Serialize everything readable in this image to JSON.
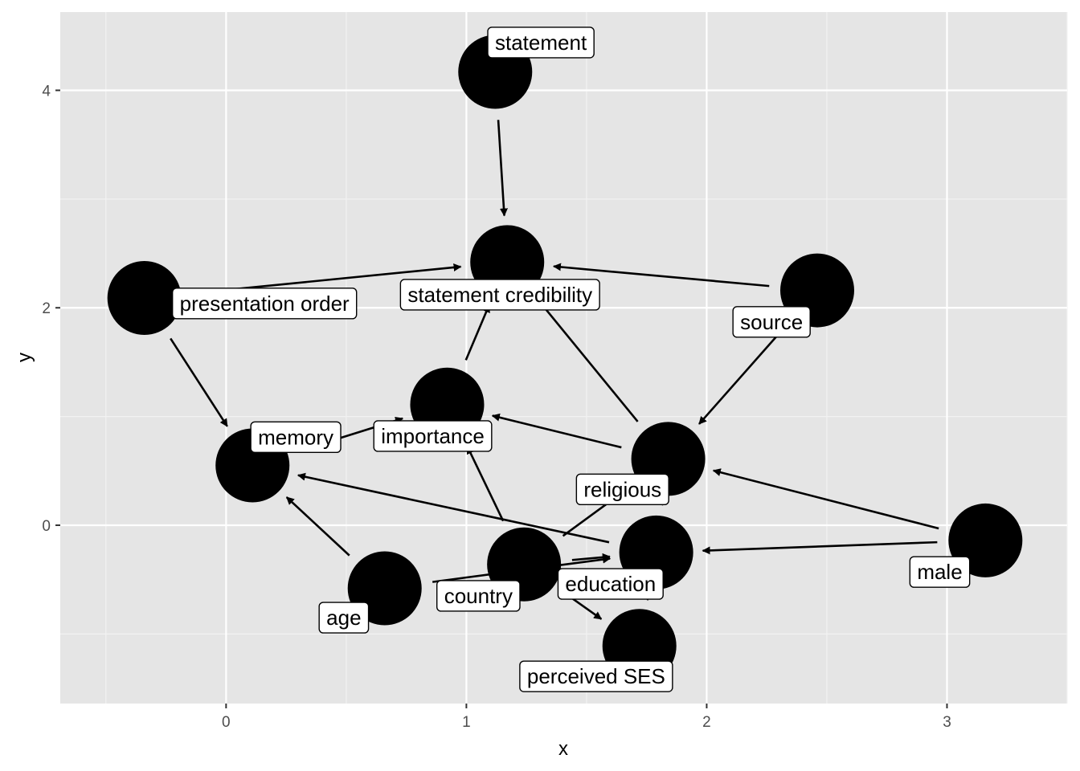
{
  "chart_data": {
    "type": "scatter",
    "subtype": "directed-acyclic-graph",
    "xlabel": "x",
    "ylabel": "y",
    "xlim": [
      -0.69,
      3.5
    ],
    "ylim": [
      -1.64,
      4.72
    ],
    "x_ticks": [
      0,
      1,
      2,
      3
    ],
    "y_ticks": [
      0,
      2,
      4
    ],
    "x_tick_labels": [
      "0",
      "1",
      "2",
      "3"
    ],
    "y_tick_labels": [
      "0",
      "2",
      "4"
    ],
    "grid": true,
    "background": "#e5e5e5",
    "node_color": "#000000",
    "nodes": [
      {
        "id": "statement",
        "label": "statement",
        "x": 1.12,
        "y": 4.17,
        "label_x": 1.31,
        "label_y": 4.44
      },
      {
        "id": "statement_credibility",
        "label": "statement credibility",
        "x": 1.17,
        "y": 2.42,
        "label_x": 1.14,
        "label_y": 2.12
      },
      {
        "id": "presentation_order",
        "label": "presentation order",
        "x": -0.34,
        "y": 2.09,
        "label_x": 0.16,
        "label_y": 2.04
      },
      {
        "id": "source",
        "label": "source",
        "x": 2.46,
        "y": 2.16,
        "label_x": 2.27,
        "label_y": 1.87
      },
      {
        "id": "importance",
        "label": "importance",
        "x": 0.92,
        "y": 1.11,
        "label_x": 0.86,
        "label_y": 0.82
      },
      {
        "id": "memory",
        "label": "memory",
        "x": 0.11,
        "y": 0.55,
        "label_x": 0.29,
        "label_y": 0.81
      },
      {
        "id": "religious",
        "label": "religious",
        "x": 1.84,
        "y": 0.61,
        "label_x": 1.65,
        "label_y": 0.33
      },
      {
        "id": "male",
        "label": "male",
        "x": 3.16,
        "y": -0.14,
        "label_x": 2.97,
        "label_y": -0.43
      },
      {
        "id": "education",
        "label": "education",
        "x": 1.79,
        "y": -0.25,
        "label_x": 1.6,
        "label_y": -0.54
      },
      {
        "id": "country",
        "label": "country",
        "x": 1.24,
        "y": -0.36,
        "label_x": 1.05,
        "label_y": -0.65
      },
      {
        "id": "age",
        "label": "age",
        "x": 0.66,
        "y": -0.58,
        "label_x": 0.49,
        "label_y": -0.85
      },
      {
        "id": "perceived_ses",
        "label": "perceived SES",
        "x": 1.72,
        "y": -1.11,
        "label_x": 1.54,
        "label_y": -1.39
      }
    ],
    "edges": [
      {
        "from": "statement",
        "to": "statement_credibility"
      },
      {
        "from": "presentation_order",
        "to": "statement_credibility"
      },
      {
        "from": "source",
        "to": "statement_credibility"
      },
      {
        "from": "importance",
        "to": "statement_credibility"
      },
      {
        "from": "religious",
        "to": "statement_credibility"
      },
      {
        "from": "presentation_order",
        "to": "memory"
      },
      {
        "from": "source",
        "to": "religious"
      },
      {
        "from": "memory",
        "to": "importance"
      },
      {
        "from": "religious",
        "to": "importance"
      },
      {
        "from": "country",
        "to": "importance"
      },
      {
        "from": "male",
        "to": "religious"
      },
      {
        "from": "country",
        "to": "religious"
      },
      {
        "from": "education",
        "to": "religious"
      },
      {
        "from": "age",
        "to": "memory"
      },
      {
        "from": "education",
        "to": "memory"
      },
      {
        "from": "male",
        "to": "education"
      },
      {
        "from": "age",
        "to": "education"
      },
      {
        "from": "country",
        "to": "education"
      },
      {
        "from": "country",
        "to": "perceived_ses"
      },
      {
        "from": "education",
        "to": "perceived_ses"
      }
    ]
  }
}
